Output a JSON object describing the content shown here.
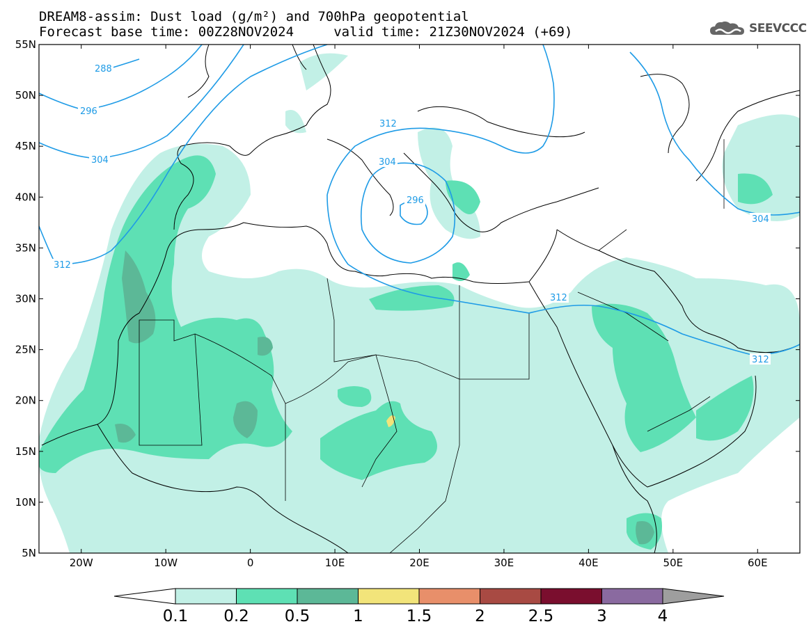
{
  "header": {
    "title_line1": "DREAM8-assim: Dust load (g/m²) and 700hPa geopotential",
    "title_line2": "Forecast base time: 00Z28NOV2024     valid time: 21Z30NOV2024 (+69)"
  },
  "brand": {
    "text": "SEEVCCC",
    "icon": "cloud-logo-icon"
  },
  "map": {
    "lat_labels": [
      "55N",
      "50N",
      "45N",
      "40N",
      "35N",
      "30N",
      "25N",
      "20N",
      "15N",
      "10N",
      "5N"
    ],
    "lon_labels": [
      "20W",
      "10W",
      "0",
      "10E",
      "20E",
      "30E",
      "40E",
      "50E",
      "60E"
    ],
    "contour_color": "#1e9be6",
    "contour_labels": [
      "288",
      "296",
      "304",
      "312",
      "304",
      "296",
      "312",
      "304",
      "312",
      "312"
    ]
  },
  "colorbar": {
    "levels": [
      "0.1",
      "0.2",
      "0.5",
      "1",
      "1.5",
      "2",
      "2.5",
      "3",
      "4"
    ],
    "colors": [
      "#c2f0e6",
      "#5ee0b4",
      "#5cb897",
      "#f2e47a",
      "#e88f6a",
      "#a84a43",
      "#7a0e2e",
      "#8a6aa0"
    ],
    "under_color": "#ffffff",
    "over_color": "#9e9e9e"
  },
  "legend_colors": {
    "dust_01": "#c2f0e6",
    "dust_02": "#5ee0b4",
    "dust_05": "#5cb897",
    "dust_1": "#f2e47a"
  }
}
